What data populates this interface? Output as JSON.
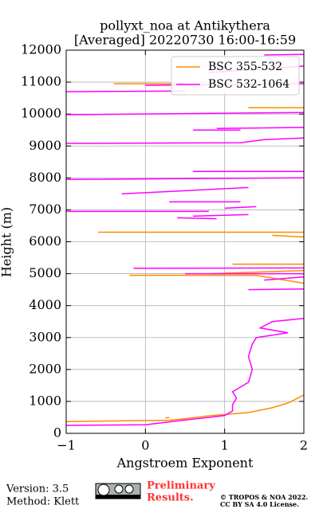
{
  "chart_data": {
    "type": "line",
    "title": [
      "pollyxt_noa at Antikythera",
      "[Averaged] 20220730 16:00-16:59"
    ],
    "xlabel": "Angstroem Exponent",
    "ylabel": "Height (m)",
    "xlim": [
      -1,
      2
    ],
    "ylim": [
      0,
      12000
    ],
    "xticks": [
      {
        "value": -1,
        "label": "−1"
      },
      0,
      1,
      2
    ],
    "yticks": [
      0,
      1000,
      2000,
      3000,
      4000,
      5000,
      6000,
      7000,
      8000,
      9000,
      10000,
      11000,
      12000
    ],
    "grid": true,
    "legend": "upper right",
    "series": [
      {
        "name": "BSC 355-532",
        "color": "#ff8c00",
        "values": [
          -1,
          0.3,
          0.5,
          0.8,
          1.3,
          1.6,
          1.8,
          2,
          null,
          0.25,
          0.3,
          null,
          -0.2,
          1.4,
          2,
          null,
          0.8,
          2,
          null,
          1.1,
          2,
          null,
          -0.6,
          2,
          null,
          1.6,
          2,
          null,
          1.3,
          2,
          null,
          -0.4,
          0.5
        ],
        "heights": [
          370,
          410,
          460,
          550,
          650,
          800,
          950,
          1200,
          null,
          480,
          500,
          null,
          4950,
          4950,
          4700,
          null,
          5000,
          5100,
          null,
          5300,
          5300,
          null,
          6300,
          6300,
          null,
          6200,
          6150,
          null,
          10200,
          10200,
          null,
          10950,
          10950
        ]
      },
      {
        "name": "BSC 532-1064",
        "color": "#ff00ff",
        "values": [
          -1,
          0,
          0.5,
          0.8,
          1.0,
          1.1,
          1.1,
          1.15,
          1.1,
          1.3,
          1.35,
          1.3,
          1.35,
          1.4,
          1.8,
          1.45,
          1.6,
          2,
          null,
          1.3,
          2,
          null,
          1.5,
          2,
          null,
          0.5,
          2,
          null,
          -0.15,
          2,
          null,
          0.4,
          0.9,
          null,
          0.6,
          1.3,
          null,
          -1,
          0.8,
          null,
          1,
          1.4,
          null,
          0.3,
          1.2,
          null,
          -0.3,
          1.3,
          null,
          -1,
          2,
          null,
          0.6,
          2,
          null,
          -1,
          1.2,
          1.5,
          2,
          null,
          0.6,
          1.2,
          null,
          0.9,
          2,
          null,
          -1,
          2,
          null,
          -1,
          0.5,
          null,
          0,
          2,
          null,
          0.8,
          2,
          null,
          1.5,
          2
        ],
        "heights": [
          250,
          270,
          420,
          500,
          560,
          700,
          900,
          1100,
          1300,
          1600,
          2000,
          2400,
          2800,
          3000,
          3150,
          3300,
          3500,
          3600,
          null,
          4500,
          4520,
          null,
          4800,
          4900,
          null,
          5000,
          5000,
          null,
          5170,
          5180,
          null,
          6750,
          6720,
          null,
          6800,
          6850,
          null,
          6950,
          6950,
          null,
          7050,
          7100,
          null,
          7250,
          7250,
          null,
          7500,
          7700,
          null,
          7950,
          8000,
          null,
          8200,
          8200,
          null,
          9080,
          9100,
          9200,
          9250,
          null,
          9500,
          9500,
          null,
          9550,
          9580,
          null,
          9980,
          10050,
          null,
          10700,
          10720,
          null,
          10900,
          10950,
          null,
          11300,
          11500,
          null,
          11850,
          11870
        ]
      }
    ]
  },
  "footer": {
    "version": "Version: 3.5",
    "method": "Method: Klett",
    "notice": [
      "Preliminary",
      "Results."
    ],
    "copyright": [
      "© TROPOS & NOA 2022.",
      "CC BY SA 4.0 License."
    ]
  }
}
